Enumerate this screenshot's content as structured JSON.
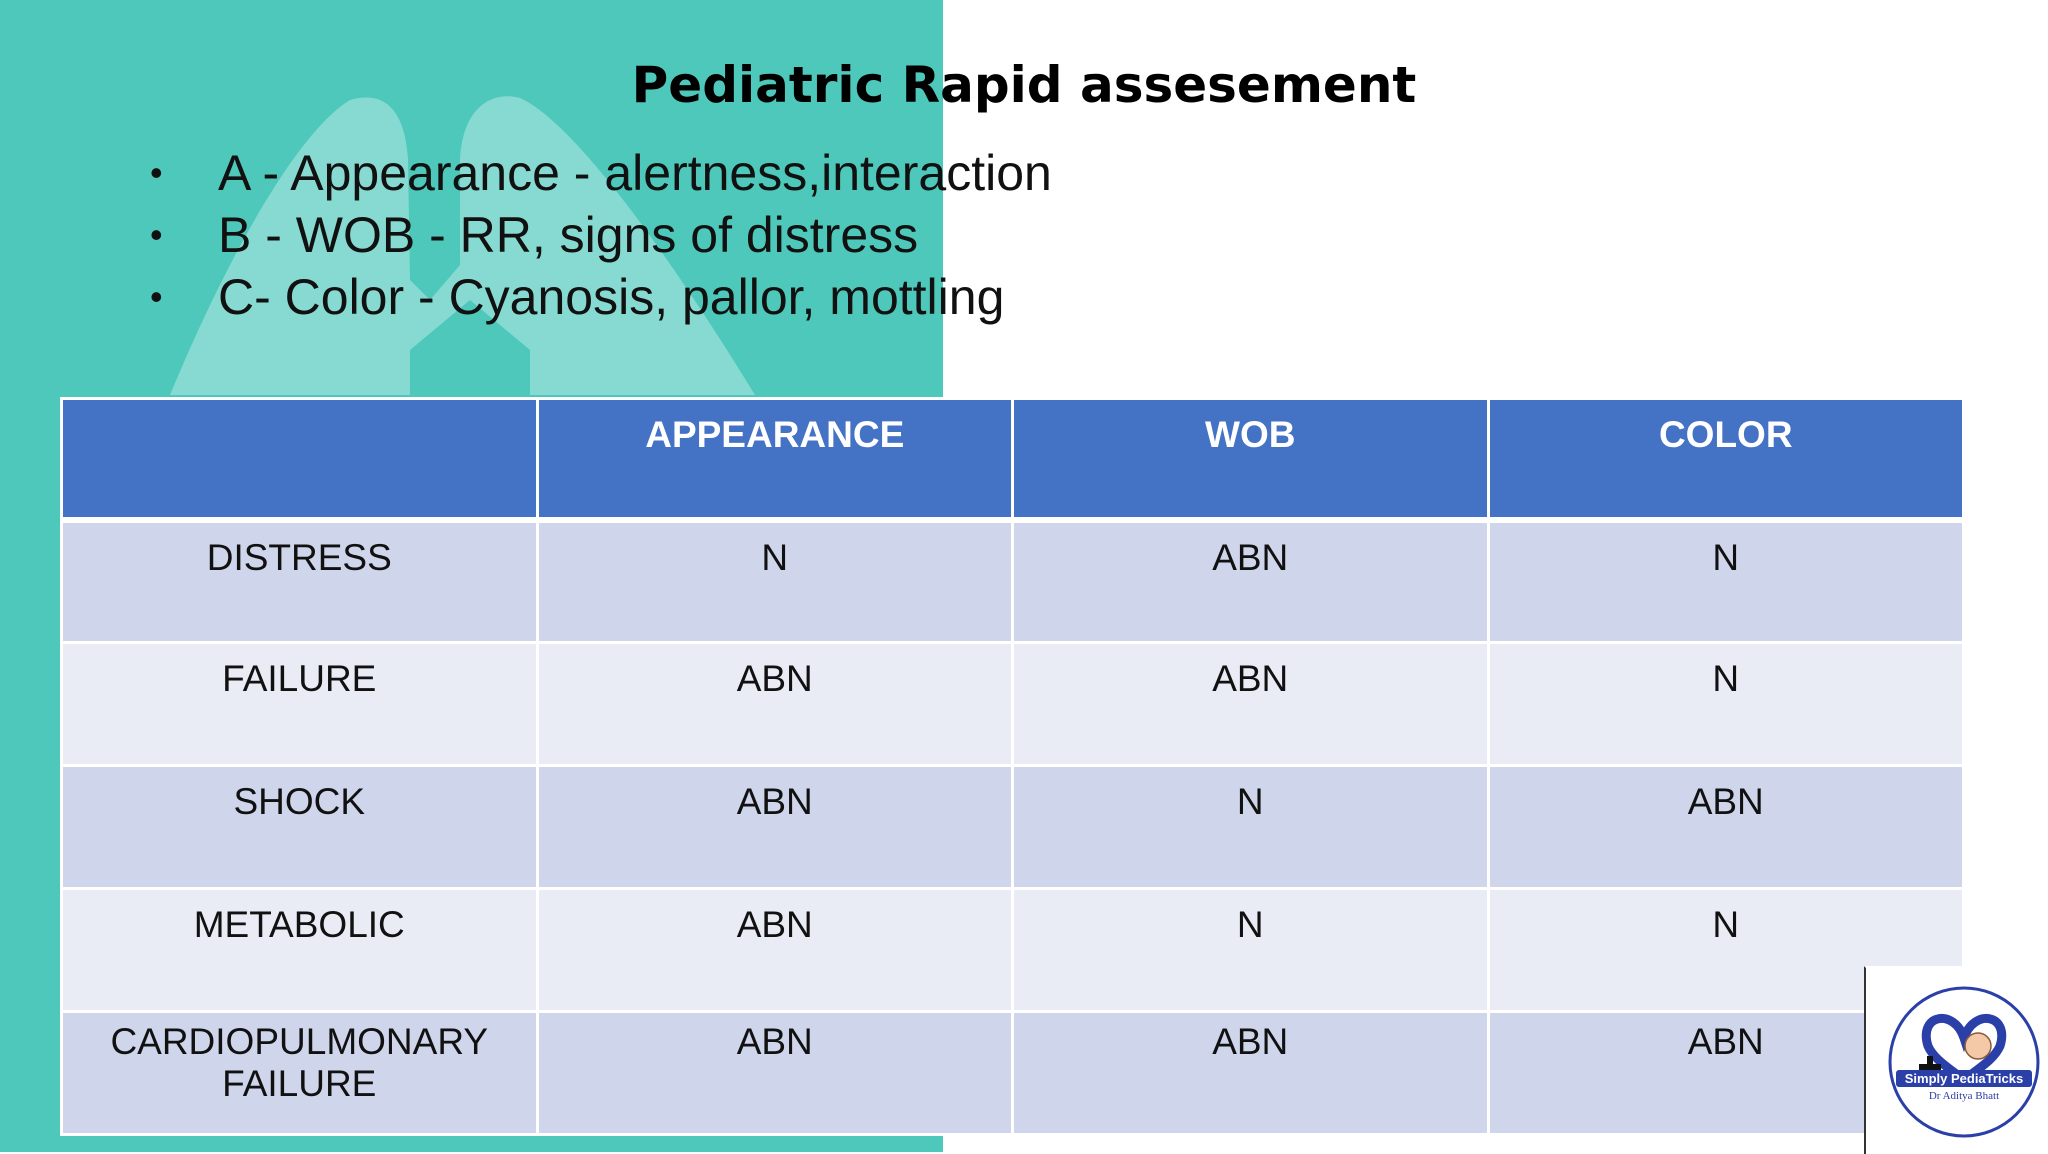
{
  "slide": {
    "title": "Pediatric Rapid assesement",
    "bullets": [
      "A - Appearance - alertness,interaction",
      "B - WOB - RR, signs of distress",
      "C- Color - Cyanosis, pallor, mottling"
    ]
  },
  "table": {
    "headers": [
      "",
      "APPEARANCE",
      "WOB",
      "COLOR"
    ],
    "rows": [
      {
        "label": "DISTRESS",
        "values": [
          "N",
          "ABN",
          "N"
        ]
      },
      {
        "label": "FAILURE",
        "values": [
          "ABN",
          "ABN",
          "N"
        ]
      },
      {
        "label": "SHOCK",
        "values": [
          "ABN",
          "N",
          "ABN"
        ]
      },
      {
        "label": "METABOLIC",
        "values": [
          "ABN",
          "N",
          "N"
        ]
      },
      {
        "label": "CARDIOPULMONARY\nFAILURE",
        "values": [
          "ABN",
          "ABN",
          "ABN"
        ]
      }
    ]
  },
  "logo": {
    "brand": "Simply PediaTricks",
    "author": "Dr Aditya Bhatt"
  },
  "colors": {
    "teal": "#4ec8bb",
    "header_blue": "#4472c4",
    "row_dark": "#cfd5ea",
    "row_light": "#e9ebf5"
  }
}
